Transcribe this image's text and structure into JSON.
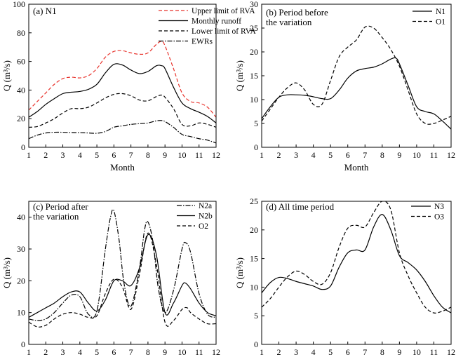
{
  "chart_data": [
    {
      "type": "line",
      "title": "(a) N1",
      "xlabel": "Month",
      "ylabel": "Q (m³/s)",
      "xlim": [
        1,
        12
      ],
      "ylim": [
        0,
        100
      ],
      "xticks": [
        1,
        2,
        3,
        4,
        5,
        6,
        7,
        8,
        9,
        10,
        11,
        12
      ],
      "yticks": [
        0,
        20,
        40,
        60,
        80,
        100
      ],
      "legend_position": "top-right",
      "grid": false,
      "series": [
        {
          "name": "Upper limit of RVA",
          "style": "dashed",
          "color": "#e8322b",
          "x": [
            1,
            1.5,
            2,
            2.5,
            3,
            3.5,
            4,
            4.5,
            5,
            5.5,
            6,
            6.5,
            7,
            7.5,
            8,
            8.5,
            8.8,
            9,
            9.5,
            10,
            10.5,
            11,
            11.5,
            12
          ],
          "y": [
            26,
            32,
            38,
            44,
            48,
            49,
            48.5,
            50,
            55,
            63,
            67,
            67.5,
            66,
            65,
            66,
            72,
            74,
            71,
            55,
            38,
            32,
            31,
            28,
            21
          ]
        },
        {
          "name": "Monthly runoff",
          "style": "solid",
          "color": "#000000",
          "x": [
            1,
            1.5,
            2,
            2.5,
            3,
            3.5,
            4,
            4.5,
            5,
            5.5,
            6,
            6.5,
            7,
            7.5,
            8,
            8.5,
            8.8,
            9,
            9.5,
            10,
            10.5,
            11,
            11.5,
            12
          ],
          "y": [
            21,
            25,
            30,
            34,
            37.5,
            38.5,
            39,
            40.5,
            44,
            52,
            58,
            57.5,
            54,
            51.5,
            53,
            57,
            57,
            55,
            42,
            31,
            27,
            24.5,
            21.5,
            17
          ]
        },
        {
          "name": "Lower limit of RVA",
          "style": "dashed",
          "color": "#000000",
          "x": [
            1,
            1.5,
            2,
            2.5,
            3,
            3.5,
            4,
            4.5,
            5,
            5.5,
            6,
            6.5,
            7,
            7.5,
            8,
            8.5,
            8.8,
            9,
            9.5,
            10,
            10.5,
            11,
            11.5,
            12
          ],
          "y": [
            14,
            14.5,
            17,
            20,
            24,
            27,
            27,
            28,
            31,
            34.5,
            37,
            37.5,
            36,
            33,
            32.5,
            35.5,
            36.5,
            35,
            27,
            16,
            15,
            17,
            16,
            14
          ]
        },
        {
          "name": "EWRs",
          "style": "dashdot",
          "color": "#000000",
          "x": [
            1,
            1.5,
            2,
            2.5,
            3,
            3.5,
            4,
            4.5,
            5,
            5.5,
            6,
            6.5,
            7,
            7.5,
            8,
            8.5,
            8.8,
            9,
            9.5,
            10,
            10.5,
            11,
            11.5,
            12
          ],
          "y": [
            6,
            8.5,
            10,
            10.5,
            10.5,
            10.3,
            10.2,
            10,
            9.8,
            11,
            14,
            15,
            16,
            16.5,
            17,
            18.5,
            18.7,
            18,
            14,
            9,
            7.5,
            6,
            5,
            3
          ]
        }
      ]
    },
    {
      "type": "line",
      "title": "(b) Period before the variation",
      "title_lines": [
        "(b) Period before",
        "the variation"
      ],
      "xlabel": "Month",
      "ylabel": "Q (m³/s)",
      "xlim": [
        1,
        12
      ],
      "ylim": [
        0,
        30
      ],
      "xticks": [
        1,
        2,
        3,
        4,
        5,
        6,
        7,
        8,
        9,
        10,
        11,
        12
      ],
      "yticks": [
        0,
        5,
        10,
        15,
        20,
        25,
        30
      ],
      "legend_position": "top-right",
      "grid": false,
      "series": [
        {
          "name": "N1",
          "style": "solid",
          "color": "#000000",
          "x": [
            1,
            1.5,
            2,
            2.5,
            3,
            3.5,
            4,
            4.5,
            5,
            5.5,
            6,
            6.5,
            7,
            7.5,
            8,
            8.5,
            8.8,
            9,
            9.5,
            10,
            10.5,
            11,
            11.5,
            12
          ],
          "y": [
            6,
            8.5,
            10.5,
            11,
            11,
            10.9,
            10.6,
            10.2,
            10.2,
            12,
            14.5,
            16,
            16.5,
            16.8,
            17.5,
            18.5,
            18.7,
            17.5,
            13,
            8.5,
            7.5,
            7,
            5.5,
            3.8
          ]
        },
        {
          "name": "O1",
          "style": "dashed",
          "color": "#000000",
          "x": [
            1,
            1.5,
            2,
            2.5,
            3,
            3.5,
            4,
            4.5,
            5,
            5.5,
            6,
            6.5,
            7,
            7.5,
            8,
            8.5,
            9,
            9.5,
            10,
            10.5,
            11,
            11.5,
            12
          ],
          "y": [
            5.5,
            8,
            10.5,
            12.5,
            13.5,
            12,
            9,
            9,
            14,
            19,
            21,
            22.5,
            25.2,
            25,
            23,
            20.5,
            17,
            12,
            7,
            5,
            5,
            5.7,
            6.5
          ]
        }
      ]
    },
    {
      "type": "line",
      "title": "(c) Period after the variation",
      "title_lines": [
        "(c) Period after",
        "the variation"
      ],
      "xlabel": "Month",
      "ylabel": "Q (m³/s)",
      "xlim": [
        1,
        12
      ],
      "ylim": [
        0,
        45
      ],
      "xticks": [
        1,
        2,
        3,
        4,
        5,
        6,
        7,
        8,
        9,
        10,
        11,
        12
      ],
      "yticks": [
        0,
        10,
        20,
        30,
        40
      ],
      "legend_position": "top-right",
      "grid": false,
      "series": [
        {
          "name": "N2a",
          "style": "dashdot",
          "color": "#000000",
          "x": [
            1,
            1.5,
            2,
            2.5,
            3,
            3.5,
            4,
            4.5,
            5,
            5.5,
            5.8,
            6,
            6.3,
            6.6,
            7,
            7.5,
            7.8,
            8,
            8.3,
            8.6,
            9,
            9.5,
            10,
            10.2,
            10.5,
            11,
            11.5,
            12
          ],
          "y": [
            8,
            7.5,
            8,
            10,
            13,
            15.5,
            15,
            9.5,
            10.5,
            30,
            40,
            42,
            33,
            19,
            12,
            24,
            36,
            38.5,
            32,
            18,
            10,
            17,
            30,
            32,
            29,
            16,
            9.5,
            8.5
          ]
        },
        {
          "name": "N2b",
          "style": "solid",
          "color": "#000000",
          "x": [
            1,
            1.5,
            2,
            2.5,
            3,
            3.5,
            4,
            4.5,
            5,
            5.5,
            6,
            6.5,
            7,
            7.5,
            8,
            8.5,
            9,
            9.5,
            10,
            10.2,
            10.5,
            11,
            11.5,
            12
          ],
          "y": [
            8.5,
            10,
            11.5,
            13,
            15,
            16.5,
            16.5,
            13,
            10.5,
            14,
            20,
            20,
            18.5,
            24,
            34.5,
            28,
            10,
            13,
            18.5,
            19.3,
            17.5,
            13,
            10,
            9
          ]
        },
        {
          "name": "O2",
          "style": "dashed",
          "color": "#000000",
          "x": [
            1,
            1.5,
            2,
            2.5,
            3,
            3.5,
            4,
            4.5,
            5,
            5.5,
            6,
            6.5,
            7,
            7.5,
            8,
            8.5,
            9,
            9.5,
            10,
            10.3,
            10.5,
            11,
            11.5,
            12
          ],
          "y": [
            7,
            5.5,
            6,
            8,
            9.5,
            10,
            9.5,
            8.5,
            9,
            16,
            20.5,
            18,
            11,
            22,
            35,
            25,
            7,
            7.5,
            11,
            11.5,
            10,
            8,
            6.5,
            6.5
          ]
        }
      ]
    },
    {
      "type": "line",
      "title": "(d) All time period",
      "xlabel": "Month",
      "ylabel": "Q (m³/s)",
      "xlim": [
        1,
        12
      ],
      "ylim": [
        0,
        25
      ],
      "xticks": [
        1,
        2,
        3,
        4,
        5,
        6,
        7,
        8,
        9,
        10,
        11,
        12
      ],
      "yticks": [
        0,
        5,
        10,
        15,
        20,
        25
      ],
      "legend_position": "top-right",
      "grid": false,
      "series": [
        {
          "name": "N3",
          "style": "solid",
          "color": "#000000",
          "x": [
            1,
            1.5,
            2,
            2.5,
            3,
            3.5,
            4,
            4.5,
            5,
            5.5,
            6,
            6.5,
            7,
            7.5,
            8,
            8.5,
            9,
            9.5,
            10,
            10.5,
            11,
            11.5,
            12
          ],
          "y": [
            9,
            10.8,
            11.7,
            11.5,
            11,
            10.6,
            10.2,
            9.6,
            10.2,
            13.5,
            16,
            16.5,
            16.5,
            20.5,
            22.7,
            20,
            15.5,
            14.3,
            13,
            11,
            8.5,
            6.5,
            5.5
          ]
        },
        {
          "name": "O3",
          "style": "dashed",
          "color": "#000000",
          "x": [
            1,
            1.5,
            2,
            2.5,
            3,
            3.5,
            4,
            4.5,
            5,
            5.5,
            6,
            6.5,
            7,
            7.5,
            8,
            8.5,
            9,
            9.5,
            10,
            10.5,
            11,
            11.5,
            12
          ],
          "y": [
            6.5,
            8,
            10,
            11.8,
            12.8,
            12.2,
            11,
            10.5,
            12.5,
            17,
            20.3,
            20.8,
            20.5,
            23,
            25,
            23.5,
            16,
            12,
            9,
            6.5,
            5.5,
            5.8,
            6.5
          ]
        }
      ]
    }
  ]
}
